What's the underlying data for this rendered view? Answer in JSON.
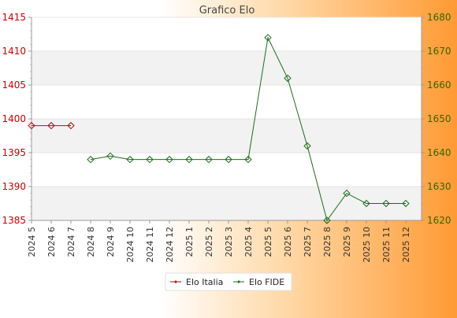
{
  "chart_data": {
    "type": "line",
    "title": "Grafico Elo",
    "xlabel": "",
    "categories": [
      "2024 5",
      "2024 6",
      "2024 7",
      "2024 8",
      "2024 9",
      "2024 10",
      "2024 11",
      "2024 12",
      "2025 1",
      "2025 2",
      "2025 3",
      "2025 4",
      "2025 5",
      "2025 6",
      "2025 7",
      "2025 8",
      "2025 9",
      "2025 10",
      "2025 11",
      "2025 12"
    ],
    "y_left": {
      "label": "",
      "ylim": [
        1385,
        1415
      ],
      "ticks": [
        1385,
        1390,
        1395,
        1400,
        1405,
        1410,
        1415
      ],
      "color": "#cc0000"
    },
    "y_right": {
      "label": "",
      "ylim": [
        1620,
        1680
      ],
      "ticks": [
        1620,
        1630,
        1640,
        1650,
        1660,
        1670,
        1680
      ],
      "color": "#336600"
    },
    "series": [
      {
        "name": "Elo Italia",
        "axis": "left",
        "color": "#cc0000",
        "values": [
          1399,
          1399,
          1399,
          null,
          null,
          null,
          null,
          null,
          null,
          null,
          null,
          null,
          null,
          null,
          null,
          null,
          null,
          null,
          null,
          null
        ]
      },
      {
        "name": "Elo FIDE",
        "axis": "right",
        "color": "#1a6e1a",
        "values": [
          null,
          null,
          null,
          1638,
          1639,
          1638,
          1638,
          1638,
          1638,
          1638,
          1638,
          1638,
          1674,
          1662,
          1642,
          1620,
          1628,
          1625,
          1625,
          1625
        ]
      }
    ],
    "grid": true,
    "legend_position": "bottom-center"
  }
}
